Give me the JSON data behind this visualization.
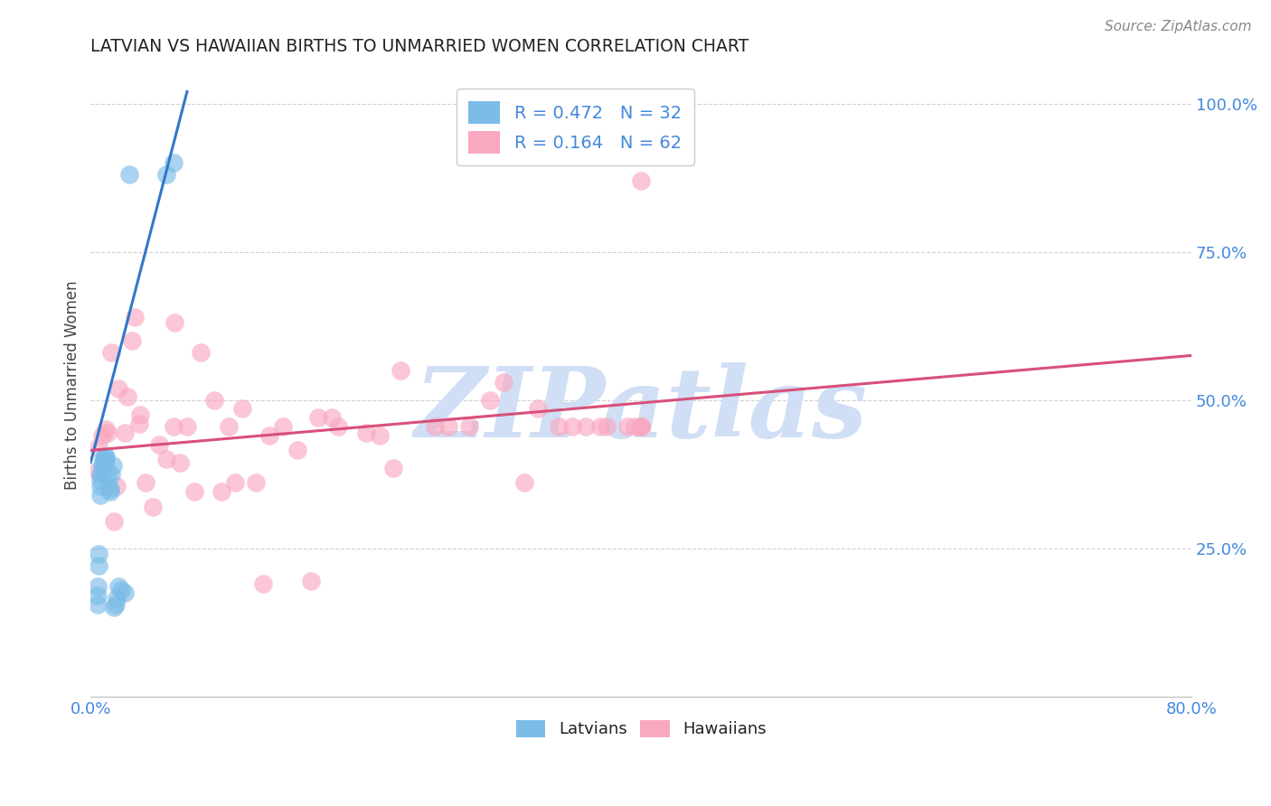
{
  "title": "LATVIAN VS HAWAIIAN BIRTHS TO UNMARRIED WOMEN CORRELATION CHART",
  "source": "Source: ZipAtlas.com",
  "ylabel": "Births to Unmarried Women",
  "xlim": [
    0.0,
    0.8
  ],
  "ylim": [
    0.0,
    1.05
  ],
  "yticks": [
    0.25,
    0.5,
    0.75,
    1.0
  ],
  "ytick_labels": [
    "25.0%",
    "50.0%",
    "75.0%",
    "100.0%"
  ],
  "xtick_labels_show": [
    "0.0%",
    "80.0%"
  ],
  "latvian_R": 0.472,
  "latvian_N": 32,
  "hawaiian_R": 0.164,
  "hawaiian_N": 62,
  "latvian_color": "#7bbce8",
  "hawaiian_color": "#f9a8c0",
  "latvian_line_color": "#3378c8",
  "hawaiian_line_color": "#d8507a",
  "title_color": "#222222",
  "axis_label_color": "#444444",
  "tick_color": "#4488dd",
  "watermark": "ZIPatlas",
  "watermark_color": "#d0dff5",
  "legend_label_color": "#4488dd",
  "latvian_x": [
    0.005,
    0.005,
    0.005,
    0.006,
    0.006,
    0.007,
    0.007,
    0.007,
    0.007,
    0.008,
    0.008,
    0.009,
    0.009,
    0.01,
    0.01,
    0.011,
    0.011,
    0.012,
    0.013,
    0.014,
    0.014,
    0.015,
    0.016,
    0.017,
    0.018,
    0.019,
    0.02,
    0.022,
    0.025,
    0.028,
    0.055,
    0.06
  ],
  "latvian_y": [
    0.155,
    0.17,
    0.185,
    0.22,
    0.24,
    0.34,
    0.355,
    0.365,
    0.375,
    0.38,
    0.39,
    0.395,
    0.4,
    0.4,
    0.405,
    0.395,
    0.405,
    0.375,
    0.355,
    0.345,
    0.35,
    0.375,
    0.39,
    0.15,
    0.155,
    0.165,
    0.185,
    0.18,
    0.175,
    0.88,
    0.88,
    0.9
  ],
  "hawaiian_x": [
    0.005,
    0.006,
    0.008,
    0.01,
    0.011,
    0.012,
    0.015,
    0.017,
    0.019,
    0.02,
    0.025,
    0.027,
    0.03,
    0.032,
    0.035,
    0.036,
    0.04,
    0.045,
    0.05,
    0.055,
    0.06,
    0.061,
    0.065,
    0.07,
    0.075,
    0.08,
    0.09,
    0.095,
    0.1,
    0.105,
    0.11,
    0.12,
    0.125,
    0.13,
    0.14,
    0.15,
    0.16,
    0.165,
    0.175,
    0.18,
    0.2,
    0.21,
    0.22,
    0.225,
    0.25,
    0.26,
    0.275,
    0.29,
    0.3,
    0.315,
    0.325,
    0.34,
    0.35,
    0.36,
    0.37,
    0.375,
    0.39,
    0.395,
    0.4,
    0.4,
    0.4,
    0.4
  ],
  "hawaiian_y": [
    0.38,
    0.42,
    0.44,
    0.395,
    0.45,
    0.445,
    0.58,
    0.295,
    0.355,
    0.52,
    0.445,
    0.505,
    0.6,
    0.64,
    0.46,
    0.475,
    0.36,
    0.32,
    0.425,
    0.4,
    0.455,
    0.63,
    0.395,
    0.455,
    0.345,
    0.58,
    0.5,
    0.345,
    0.455,
    0.36,
    0.485,
    0.36,
    0.19,
    0.44,
    0.455,
    0.415,
    0.195,
    0.47,
    0.47,
    0.455,
    0.445,
    0.44,
    0.385,
    0.55,
    0.455,
    0.455,
    0.455,
    0.5,
    0.53,
    0.36,
    0.485,
    0.455,
    0.455,
    0.455,
    0.455,
    0.455,
    0.455,
    0.455,
    0.87,
    0.455,
    0.455,
    0.455
  ],
  "lv_line_x": [
    0.0,
    0.07
  ],
  "lv_line_y": [
    0.395,
    1.02
  ],
  "hw_line_x": [
    0.0,
    0.8
  ],
  "hw_line_y": [
    0.415,
    0.575
  ]
}
